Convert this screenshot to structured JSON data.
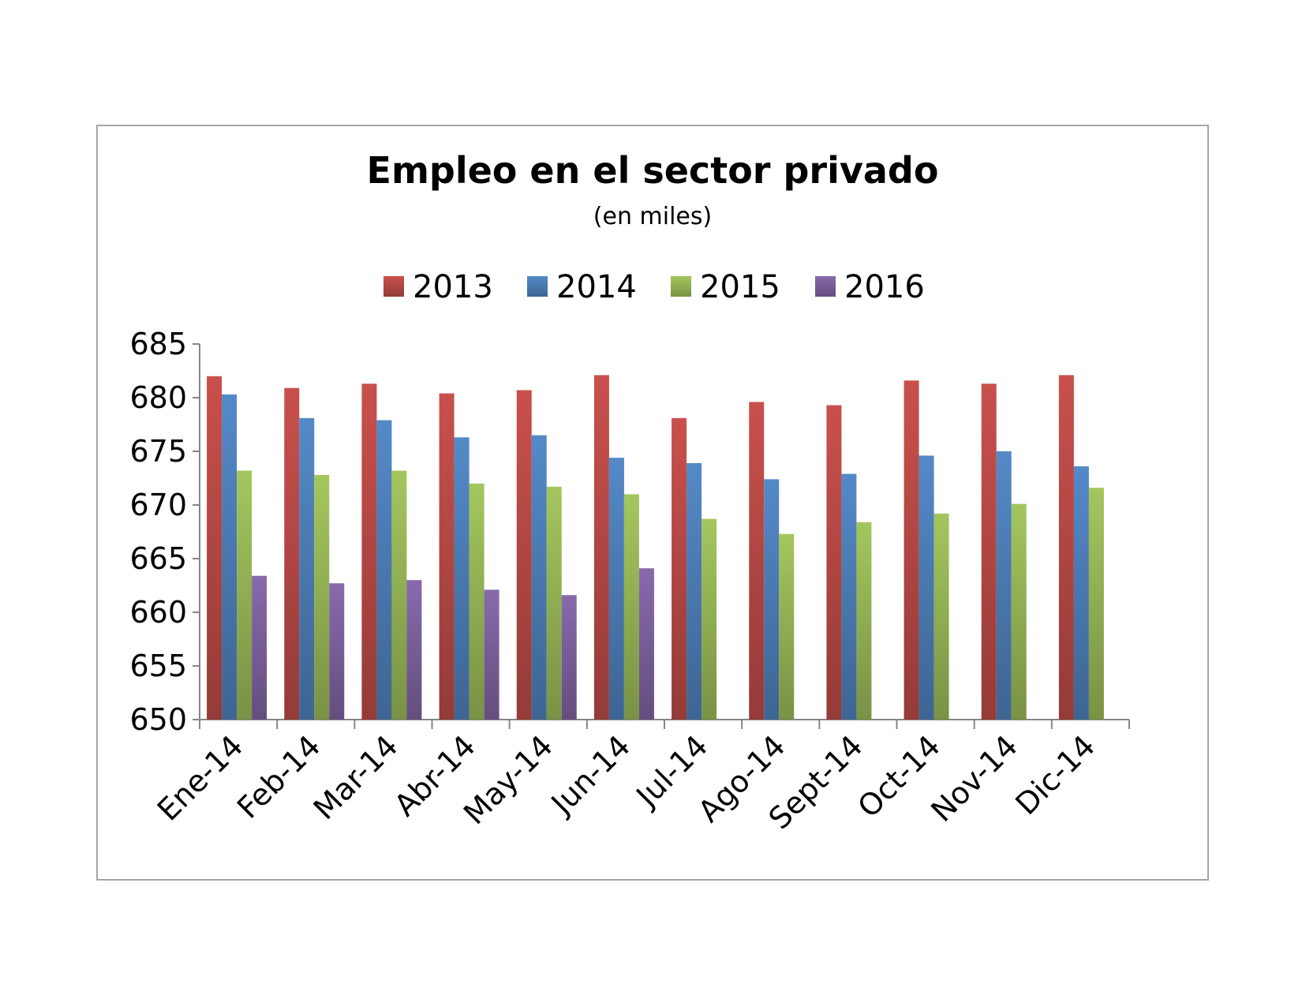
{
  "chart_data": {
    "type": "bar",
    "title": "Empleo en el sector privado",
    "subtitle": "(en miles)",
    "xlabel": "",
    "ylabel": "",
    "ylim": [
      650,
      685
    ],
    "yticks": [
      650,
      655,
      660,
      665,
      670,
      675,
      680,
      685
    ],
    "grid": false,
    "legend_position": "top",
    "categories": [
      "Ene-14",
      "Feb-14",
      "Mar-14",
      "Abr-14",
      "May-14",
      "Jun-14",
      "Jul-14",
      "Ago-14",
      "Sept-14",
      "Oct-14",
      "Nov-14",
      "Dic-14"
    ],
    "series": [
      {
        "name": "2013",
        "color": "#be4b48",
        "values": [
          682.0,
          680.9,
          681.3,
          680.4,
          680.7,
          682.1,
          678.1,
          679.6,
          679.3,
          681.6,
          681.3,
          682.1
        ]
      },
      {
        "name": "2014",
        "color": "#4f81bd",
        "values": [
          680.3,
          678.1,
          677.9,
          676.3,
          676.5,
          674.4,
          673.9,
          672.4,
          672.9,
          674.6,
          675.0,
          673.6
        ]
      },
      {
        "name": "2015",
        "color": "#9bbb59",
        "values": [
          673.2,
          672.8,
          673.2,
          672.0,
          671.7,
          671.0,
          668.7,
          667.3,
          668.4,
          669.2,
          670.1,
          671.6
        ]
      },
      {
        "name": "2016",
        "color": "#8064a2",
        "values": [
          663.4,
          662.7,
          663.0,
          662.1,
          661.6,
          664.1,
          null,
          null,
          null,
          null,
          null,
          null
        ]
      }
    ]
  }
}
